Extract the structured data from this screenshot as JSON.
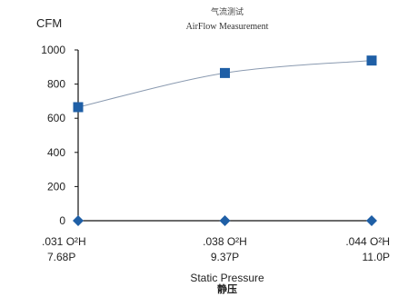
{
  "chart_data": {
    "type": "line",
    "title": "气流测试",
    "subtitle": "AirFlow Measurement",
    "ylabel": "CFM",
    "xlabel": "Static Pressure",
    "xlabel_cn": "静压",
    "ylim": [
      0,
      1000
    ],
    "yticks": [
      0,
      200,
      400,
      600,
      800,
      1000
    ],
    "categories": [
      {
        "line1": ".031 O²H",
        "line2": "7.68P"
      },
      {
        "line1": ".038 O²H",
        "line2": "9.37P"
      },
      {
        "line1": ".044 O²H",
        "line2": "11.0P"
      }
    ],
    "series": [
      {
        "marker": "square",
        "values": [
          665,
          865,
          938
        ]
      },
      {
        "marker": "diamond",
        "values": [
          0,
          0,
          0
        ]
      }
    ],
    "grid": false,
    "colors": {
      "marker": "#1f5fa6",
      "curve": "#8a9ab0",
      "axis": "#111111"
    }
  }
}
